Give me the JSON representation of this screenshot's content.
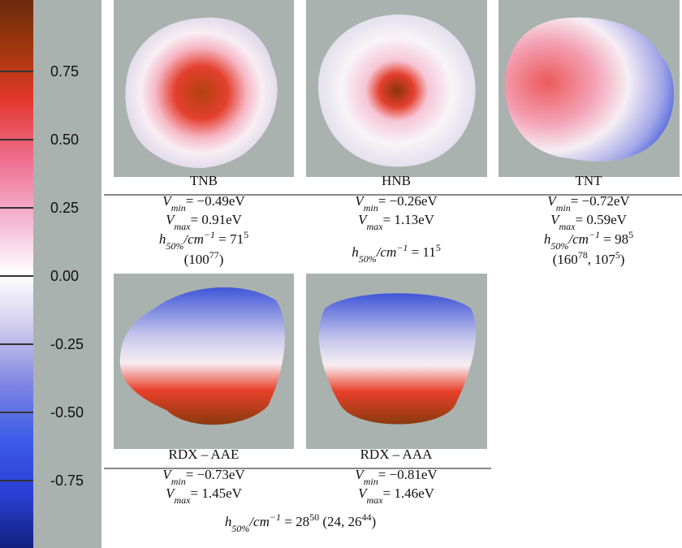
{
  "colorbar": {
    "ticks": [
      "0.75",
      "0.50",
      "0.25",
      "0.00",
      "-0.25",
      "-0.50",
      "-0.75"
    ]
  },
  "panels": [
    {
      "name": "TNB",
      "vmin": {
        "symbol": "V",
        "subscript": "min",
        "value": "= −0.49eV"
      },
      "vmax": {
        "symbol": "V",
        "subscript": "max",
        "value": "=  0.91eV"
      },
      "h50": {
        "symbol": "h",
        "subscript": "50%",
        "unit": "/cm",
        "unit_exp": "−1",
        "value": " = 71",
        "value_exp": "5"
      },
      "note": [
        {
          "text": "(100",
          "sup": "77"
        },
        {
          "text": ")"
        }
      ]
    },
    {
      "name": "HNB",
      "vmin": {
        "symbol": "V",
        "subscript": "min",
        "value": "= −0.26eV"
      },
      "vmax": {
        "symbol": "V",
        "subscript": "max",
        "value": "=  1.13eV"
      },
      "h50": {
        "symbol": "h",
        "subscript": "50%",
        "unit": "/cm",
        "unit_exp": "−1",
        "value": " = 11",
        "value_exp": "5"
      }
    },
    {
      "name": "TNT",
      "vmin": {
        "symbol": "V",
        "subscript": "min",
        "value": "= −0.72eV"
      },
      "vmax": {
        "symbol": "V",
        "subscript": "max",
        "value": "=  0.59eV"
      },
      "h50": {
        "symbol": "h",
        "subscript": "50%",
        "unit": "/cm",
        "unit_exp": "−1",
        "value": " = 98",
        "value_exp": "5"
      },
      "note": [
        {
          "text": "(160",
          "sup": "78"
        },
        {
          "text": ", 107",
          "sup": "5"
        },
        {
          "text": ")"
        }
      ]
    },
    {
      "name": "RDX – AAE",
      "vmin": {
        "symbol": "V",
        "subscript": "min",
        "value": "= −0.73eV"
      },
      "vmax": {
        "symbol": "V",
        "subscript": "max",
        "value": "=  1.45eV"
      }
    },
    {
      "name": "RDX – AAA",
      "vmin": {
        "symbol": "V",
        "subscript": "min",
        "value": "= −0.81eV"
      },
      "vmax": {
        "symbol": "V",
        "subscript": "max",
        "value": "=  1.46eV"
      }
    }
  ],
  "rdx_h50": {
    "symbol": "h",
    "subscript": "50%",
    "unit": "/cm",
    "unit_exp": "−1",
    "value": " = 28",
    "value_exp": "50",
    "note": [
      {
        "text": " (24, 26",
        "sup": "44"
      },
      {
        "text": ")"
      }
    ]
  }
}
